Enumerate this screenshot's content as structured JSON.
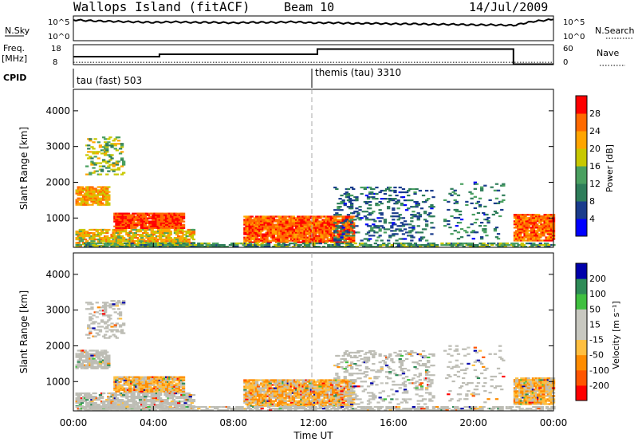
{
  "header": {
    "title": "Wallops Island (fitACF)",
    "beam": "Beam 10",
    "date": "14/Jul/2009"
  },
  "colors": {
    "power_scale": [
      "#0000ff",
      "#1a3c8c",
      "#2e7d5a",
      "#4aa060",
      "#c8c800",
      "#ffa500",
      "#ff6a00",
      "#ff0000"
    ],
    "velocity_scale": [
      "#ff0000",
      "#ff5500",
      "#ff8c00",
      "#ffbf40",
      "#c8c8c0",
      "#c8c8c0",
      "#40c040",
      "#2e8b57",
      "#0000aa"
    ],
    "ground_scatter": "#bdbdb5"
  },
  "chart_data": [
    {
      "type": "line",
      "name": "top-panel-nsky-nsearch",
      "left_label": "N.Sky",
      "right_label": "N.Search",
      "left_ticks": [
        "10^5",
        "10^0"
      ],
      "right_ticks": [
        "10^5",
        "10^0"
      ],
      "x": [
        0,
        1,
        2,
        3,
        4,
        5,
        6,
        7,
        8,
        9,
        10,
        11,
        12,
        13,
        14,
        15,
        16,
        17,
        18,
        19,
        20,
        21,
        22,
        23,
        24
      ],
      "series": [
        {
          "values": [
            4.2,
            4.0,
            3.9,
            3.8,
            3.7,
            3.8,
            3.7,
            3.7,
            3.6,
            3.7,
            3.7,
            3.8,
            3.6,
            3.6,
            3.5,
            3.5,
            3.4,
            3.4,
            3.3,
            3.3,
            3.2,
            3.2,
            3.1,
            3.9,
            4.3
          ]
        }
      ],
      "ylim": [
        0,
        5
      ]
    },
    {
      "type": "line",
      "name": "freq-nave-panel",
      "left_label": "Freq. [MHz]",
      "right_label": "Nave",
      "left_ticks": [
        "18",
        "8"
      ],
      "right_ticks": [
        "60",
        "0"
      ],
      "x": [
        0,
        4.3,
        4.3,
        12.2,
        12.2,
        22,
        22,
        24
      ],
      "series": [
        {
          "name": "Freq.",
          "values": [
            12.0,
            12.0,
            13.2,
            13.2,
            15.8,
            15.8,
            8.2,
            8.2
          ]
        },
        {
          "name": "Nave",
          "values": [
            7,
            7,
            7,
            7,
            7,
            7,
            7,
            7
          ]
        }
      ],
      "ylim": [
        8,
        18
      ]
    },
    {
      "type": "table",
      "name": "cpid-track",
      "label": "CPID",
      "entries": [
        {
          "start": 0,
          "text": "tau (fast) 503"
        },
        {
          "start": 12.0,
          "text": "themis (tau) 3310"
        }
      ]
    },
    {
      "type": "heatmap",
      "name": "power-panel",
      "ylabel": "Slant Range [km]",
      "yticks": [
        1000,
        2000,
        3000,
        4000
      ],
      "ylim": [
        180,
        4600
      ],
      "xlim": [
        0,
        24
      ],
      "colorbar_label": "Power [dB]",
      "colorbar_ticks": [
        "4",
        "8",
        "12",
        "16",
        "20",
        "24",
        "28"
      ],
      "zlim": [
        0,
        30
      ]
    },
    {
      "type": "heatmap",
      "name": "velocity-panel",
      "ylabel": "Slant Range [km]",
      "yticks": [
        1000,
        2000,
        3000,
        4000
      ],
      "ylim": [
        180,
        4600
      ],
      "xlim": [
        0,
        24
      ],
      "xlabel": "Time UT",
      "xtick_labels": [
        "00:00",
        "04:00",
        "08:00",
        "12:00",
        "16:00",
        "20:00",
        "00:00"
      ],
      "xticks": [
        0,
        4,
        8,
        12,
        16,
        20,
        24
      ],
      "colorbar_label": "Velocity [m s⁻¹]",
      "colorbar_ticks": [
        "200",
        "100",
        "50",
        "15",
        "-15",
        "-50",
        "-100",
        "-200"
      ],
      "zlim": [
        -250,
        250
      ]
    }
  ]
}
